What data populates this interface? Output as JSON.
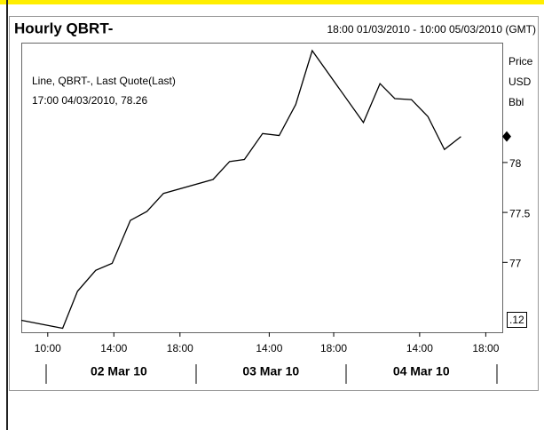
{
  "chart_data": {
    "type": "line",
    "title": "Hourly QBRT-",
    "subtitle": "18:00 01/03/2010 - 10:00 05/03/2010 (GMT)",
    "y_axis_label": [
      "Price",
      "USD",
      "Bbl"
    ],
    "annotation": [
      "Line, QBRT-, Last Quote(Last)",
      "17:00 04/03/2010, 78.26"
    ],
    "last_value_box": ".12",
    "series": [
      {
        "name": "QBRT-",
        "color": "#000000",
        "x": [
          0,
          2.5,
          3.4,
          4.5,
          5.5,
          6.6,
          7.6,
          8.6,
          11.6,
          12.6,
          13.5,
          14.6,
          15.6,
          16.6,
          17.6,
          20.7,
          21.7,
          22.6,
          23.6,
          24.6,
          25.6,
          26.6
        ],
        "values": [
          76.42,
          76.34,
          76.71,
          76.92,
          76.99,
          77.42,
          77.51,
          77.69,
          77.83,
          78.01,
          78.03,
          78.29,
          78.27,
          78.58,
          79.12,
          78.4,
          78.79,
          78.64,
          78.63,
          78.46,
          78.13,
          78.26
        ]
      }
    ],
    "xlim": [
      0,
      29.1
    ],
    "xticks": [
      {
        "value": 1.6,
        "label": "10:00"
      },
      {
        "value": 5.6,
        "label": "14:00"
      },
      {
        "value": 9.6,
        "label": "18:00"
      },
      {
        "value": 15.0,
        "label": "14:00"
      },
      {
        "value": 18.9,
        "label": "18:00"
      },
      {
        "value": 24.1,
        "label": "14:00"
      },
      {
        "value": 28.1,
        "label": "18:00"
      }
    ],
    "day_ticks": [
      {
        "value": 5.9,
        "label": "02 Mar 10"
      },
      {
        "value": 15.1,
        "label": "03 Mar 10"
      },
      {
        "value": 24.2,
        "label": "04 Mar 10"
      }
    ],
    "ylim": [
      76.3,
      79.2
    ],
    "yticks": [
      77,
      77.5,
      78
    ]
  }
}
